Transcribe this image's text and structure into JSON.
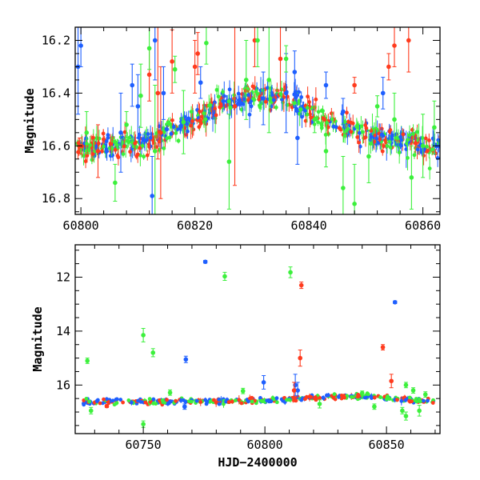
{
  "colors": {
    "blue": "#1e5fff",
    "red": "#ff3b1e",
    "green": "#3cf03c"
  },
  "chart_data": [
    {
      "panel": "top",
      "type": "scatter",
      "title": "",
      "xlabel": "",
      "ylabel": "Magnitude",
      "xlim": [
        60799,
        60863
      ],
      "ylim": [
        16.86,
        16.15
      ],
      "y_inverted": true,
      "grid": false,
      "xticks": [
        60800,
        60820,
        60840,
        60860
      ],
      "yticks": [
        16.2,
        16.4,
        16.6,
        16.8
      ],
      "trend_x": [
        60799,
        60805,
        60810,
        60815,
        60820,
        60825,
        60830,
        60835,
        60838,
        60842,
        60848,
        60855,
        60863
      ],
      "trend_y": [
        16.61,
        16.6,
        16.59,
        16.55,
        16.5,
        16.44,
        16.42,
        16.41,
        16.43,
        16.5,
        16.54,
        16.58,
        16.61
      ],
      "series": [
        {
          "color_key": "red",
          "points": [
            [
              60799.8,
              16.6,
              0.03
            ],
            [
              60812.0,
              16.33,
              0.1
            ],
            [
              60813.5,
              16.4,
              0.25
            ],
            [
              60816.0,
              16.28,
              0.12
            ],
            [
              60820.0,
              16.3,
              0.1
            ],
            [
              60827.0,
              16.45,
              0.3
            ],
            [
              60830.5,
              16.2,
              0.1
            ],
            [
              60835.0,
              16.27,
              0.12
            ],
            [
              60848.0,
              16.37,
              0.03
            ],
            [
              60854.0,
              16.3,
              0.05
            ],
            [
              60855.0,
              16.22,
              0.08
            ],
            [
              60857.5,
              16.2,
              0.12
            ],
            [
              60820.5,
              16.25,
              0.08
            ],
            [
              60803.0,
              16.62,
              0.1
            ],
            [
              60814.0,
              16.55,
              0.25
            ]
          ]
        },
        {
          "color_key": "blue",
          "points": [
            [
              60799.5,
              16.3,
              0.18
            ],
            [
              60800.0,
              16.22,
              0.08
            ],
            [
              60807.0,
              16.55,
              0.15
            ],
            [
              60809.0,
              16.37,
              0.08
            ],
            [
              60810.0,
              16.45,
              0.12
            ],
            [
              60812.5,
              16.79,
              0.15
            ],
            [
              60813.0,
              16.2,
              0.15
            ],
            [
              60814.5,
              16.4,
              0.1
            ],
            [
              60821.0,
              16.36,
              0.06
            ],
            [
              60832.0,
              16.42,
              0.1
            ],
            [
              60836.0,
              16.4,
              0.15
            ],
            [
              60837.5,
              16.32,
              0.08
            ],
            [
              60838.0,
              16.57,
              0.1
            ],
            [
              60846.0,
              16.47,
              0.05
            ],
            [
              60853.0,
              16.4,
              0.06
            ],
            [
              60843.0,
              16.37,
              0.05
            ]
          ]
        },
        {
          "color_key": "green",
          "points": [
            [
              60806.0,
              16.74,
              0.07
            ],
            [
              60808.0,
              16.52,
              0.05
            ],
            [
              60810.5,
              16.41,
              0.12
            ],
            [
              60812.0,
              16.23,
              0.08
            ],
            [
              60813.0,
              16.62,
              0.25
            ],
            [
              60816.5,
              16.31,
              0.05
            ],
            [
              60822.0,
              16.21,
              0.08
            ],
            [
              60826.0,
              16.66,
              0.18
            ],
            [
              60829.0,
              16.35,
              0.15
            ],
            [
              60831.0,
              16.2,
              0.1
            ],
            [
              60833.0,
              16.35,
              0.2
            ],
            [
              60836.0,
              16.27,
              0.05
            ],
            [
              60841.0,
              16.5,
              0.05
            ],
            [
              60843.0,
              16.62,
              0.06
            ],
            [
              60846.0,
              16.76,
              0.12
            ],
            [
              60848.0,
              16.82,
              0.15
            ],
            [
              60852.0,
              16.45,
              0.04
            ],
            [
              60855.0,
              16.5,
              0.1
            ],
            [
              60858.0,
              16.72,
              0.12
            ],
            [
              60860.0,
              16.6,
              0.12
            ],
            [
              60862.0,
              16.53,
              0.1
            ],
            [
              60801.0,
              16.55,
              0.08
            ],
            [
              60818.0,
              16.51,
              0.12
            ],
            [
              60850.5,
              16.64,
              0.1
            ]
          ]
        }
      ]
    },
    {
      "panel": "bottom",
      "type": "scatter",
      "title": "",
      "xlabel": "HJD−2400000",
      "ylabel": "Magnitude",
      "xlim": [
        60722,
        60872
      ],
      "ylim": [
        17.8,
        10.8
      ],
      "y_inverted": true,
      "grid": false,
      "xticks": [
        60750,
        60800,
        60850
      ],
      "yticks": [
        12,
        14,
        16
      ],
      "trend_x": [
        60725,
        60750,
        60775,
        60800,
        60815,
        60825,
        60835,
        60845,
        60855,
        60869
      ],
      "trend_y": [
        16.62,
        16.62,
        16.6,
        16.58,
        16.5,
        16.44,
        16.41,
        16.44,
        16.53,
        16.6
      ],
      "series": [
        {
          "color_key": "blue",
          "points": [
            [
              60775.5,
              11.43,
              0.05
            ],
            [
              60767.5,
              15.05,
              0.12
            ],
            [
              60799.5,
              15.9,
              0.25
            ],
            [
              60812.5,
              16.0,
              0.4
            ],
            [
              60853.5,
              12.93,
              0.05
            ],
            [
              60813.5,
              16.2,
              0.3
            ],
            [
              60767.0,
              16.8,
              0.1
            ]
          ]
        },
        {
          "color_key": "red",
          "points": [
            [
              60815.0,
              12.3,
              0.12
            ],
            [
              60814.5,
              15.0,
              0.3
            ],
            [
              60848.5,
              14.6,
              0.1
            ],
            [
              60852.0,
              15.85,
              0.25
            ],
            [
              60812.0,
              16.2,
              0.3
            ],
            [
              60735.0,
              16.78,
              0.05
            ]
          ]
        },
        {
          "color_key": "green",
          "points": [
            [
              60727.0,
              15.1,
              0.1
            ],
            [
              60750.0,
              14.15,
              0.25
            ],
            [
              60754.0,
              14.8,
              0.15
            ],
            [
              60783.5,
              11.97,
              0.15
            ],
            [
              60810.5,
              11.82,
              0.2
            ],
            [
              60750.0,
              17.45,
              0.12
            ],
            [
              60728.5,
              16.95,
              0.12
            ],
            [
              60761.0,
              16.28,
              0.1
            ],
            [
              60858.0,
              16.0,
              0.1
            ],
            [
              60861.0,
              16.2,
              0.1
            ],
            [
              60863.5,
              16.95,
              0.2
            ],
            [
              60858.0,
              17.15,
              0.15
            ],
            [
              60856.5,
              16.95,
              0.12
            ],
            [
              60791.0,
              16.22,
              0.1
            ],
            [
              60845.0,
              16.8,
              0.1
            ],
            [
              60866.0,
              16.35,
              0.1
            ],
            [
              60840.0,
              16.3,
              0.08
            ],
            [
              60822.5,
              16.7,
              0.15
            ]
          ]
        }
      ]
    }
  ]
}
